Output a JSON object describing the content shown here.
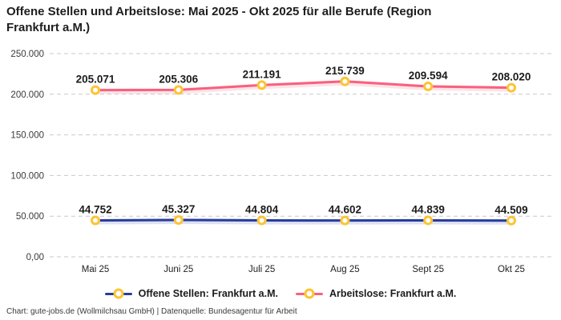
{
  "header": {
    "title": "Offene Stellen und Arbeitslose: Mai 2025 - Okt 2025 für alle Berufe (Region Frankfurt a.M.)"
  },
  "footer": {
    "text": "Chart: gute-jobs.de (Wollmilchsau GmbH) | Datenquelle: Bundesagentur für Arbeit"
  },
  "chart_data": {
    "type": "line",
    "title": "Offene Stellen und Arbeitslose: Mai 2025 - Okt 2025 für alle Berufe (Region Frankfurt a.M.)",
    "categories": [
      "Mai 25",
      "Juni 25",
      "Juli 25",
      "Aug 25",
      "Sept 25",
      "Okt 25"
    ],
    "series": [
      {
        "name": "Offene Stellen: Frankfurt a.M.",
        "color": "#2a3b9a",
        "glow": "#b9c5ec",
        "values": [
          44752,
          45327,
          44804,
          44602,
          44839,
          44509
        ],
        "labels": [
          "44.752",
          "45.327",
          "44.804",
          "44.602",
          "44.839",
          "44.509"
        ]
      },
      {
        "name": "Arbeitslose: Frankfurt a.M.",
        "color": "#f9607d",
        "glow": "#fbc9d2",
        "values": [
          205071,
          205306,
          211191,
          215739,
          209594,
          208020
        ],
        "labels": [
          "205.071",
          "205.306",
          "211.191",
          "215.739",
          "209.594",
          "208.020"
        ]
      }
    ],
    "xlabel": "",
    "ylabel": "",
    "ylim": [
      0,
      250000
    ],
    "ytick_values": [
      0,
      50000,
      100000,
      150000,
      200000,
      250000
    ],
    "ytick_labels": [
      "0,00",
      "50.000",
      "100.000",
      "150.000",
      "200.000",
      "250.000"
    ],
    "grid": "horizontal-dashed",
    "legend_position": "bottom",
    "marker": {
      "ring_color": "#fcc434",
      "fill": "#ffffff"
    }
  }
}
